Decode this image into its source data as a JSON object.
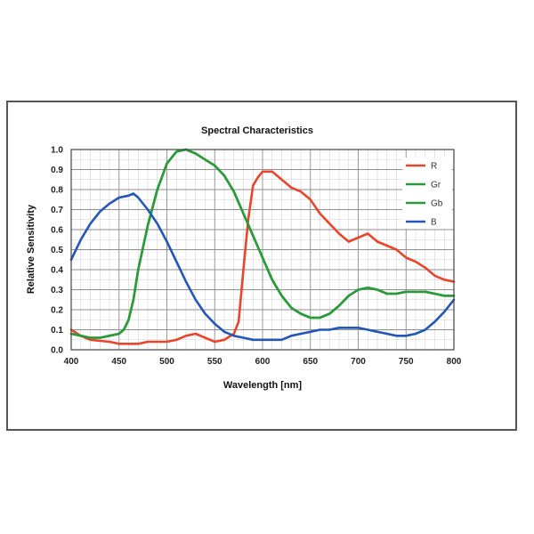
{
  "chart_data": {
    "type": "line",
    "title": "Spectral Characteristics",
    "xlabel": "Wavelength [nm]",
    "ylabel": "Relative Sensitivity",
    "xlim": [
      400,
      800
    ],
    "ylim": [
      0,
      1.0
    ],
    "xticks": [
      400,
      450,
      500,
      550,
      600,
      650,
      700,
      750,
      800
    ],
    "yticks": [
      0.0,
      0.1,
      0.2,
      0.3,
      0.4,
      0.5,
      0.6,
      0.7,
      0.8,
      0.9,
      1.0
    ],
    "grid": true,
    "legend_position": "top-right",
    "series": [
      {
        "name": "R",
        "color": "#e8452c",
        "points": [
          [
            400,
            0.1
          ],
          [
            410,
            0.07
          ],
          [
            420,
            0.05
          ],
          [
            440,
            0.04
          ],
          [
            450,
            0.03
          ],
          [
            470,
            0.03
          ],
          [
            480,
            0.04
          ],
          [
            500,
            0.04
          ],
          [
            510,
            0.05
          ],
          [
            520,
            0.07
          ],
          [
            530,
            0.08
          ],
          [
            540,
            0.06
          ],
          [
            550,
            0.04
          ],
          [
            560,
            0.05
          ],
          [
            570,
            0.08
          ],
          [
            575,
            0.14
          ],
          [
            580,
            0.4
          ],
          [
            585,
            0.65
          ],
          [
            590,
            0.82
          ],
          [
            595,
            0.86
          ],
          [
            600,
            0.89
          ],
          [
            610,
            0.89
          ],
          [
            620,
            0.85
          ],
          [
            630,
            0.81
          ],
          [
            640,
            0.79
          ],
          [
            650,
            0.75
          ],
          [
            660,
            0.68
          ],
          [
            670,
            0.63
          ],
          [
            680,
            0.58
          ],
          [
            690,
            0.54
          ],
          [
            700,
            0.56
          ],
          [
            710,
            0.58
          ],
          [
            720,
            0.54
          ],
          [
            730,
            0.52
          ],
          [
            740,
            0.5
          ],
          [
            750,
            0.46
          ],
          [
            760,
            0.44
          ],
          [
            770,
            0.41
          ],
          [
            780,
            0.37
          ],
          [
            790,
            0.35
          ],
          [
            800,
            0.34
          ]
        ]
      },
      {
        "name": "Gr",
        "color": "#2b9a3a",
        "points": [
          [
            400,
            0.08
          ],
          [
            410,
            0.07
          ],
          [
            420,
            0.06
          ],
          [
            430,
            0.06
          ],
          [
            440,
            0.07
          ],
          [
            450,
            0.08
          ],
          [
            455,
            0.1
          ],
          [
            460,
            0.15
          ],
          [
            465,
            0.25
          ],
          [
            470,
            0.4
          ],
          [
            480,
            0.62
          ],
          [
            490,
            0.8
          ],
          [
            500,
            0.93
          ],
          [
            510,
            0.99
          ],
          [
            520,
            1.0
          ],
          [
            530,
            0.98
          ],
          [
            540,
            0.95
          ],
          [
            550,
            0.92
          ],
          [
            560,
            0.87
          ],
          [
            570,
            0.79
          ],
          [
            580,
            0.68
          ],
          [
            590,
            0.57
          ],
          [
            600,
            0.46
          ],
          [
            610,
            0.35
          ],
          [
            620,
            0.27
          ],
          [
            630,
            0.21
          ],
          [
            640,
            0.18
          ],
          [
            650,
            0.16
          ],
          [
            660,
            0.16
          ],
          [
            670,
            0.18
          ],
          [
            680,
            0.22
          ],
          [
            690,
            0.27
          ],
          [
            700,
            0.3
          ],
          [
            710,
            0.31
          ],
          [
            720,
            0.3
          ],
          [
            730,
            0.28
          ],
          [
            740,
            0.28
          ],
          [
            750,
            0.29
          ],
          [
            760,
            0.29
          ],
          [
            770,
            0.29
          ],
          [
            780,
            0.28
          ],
          [
            790,
            0.27
          ],
          [
            800,
            0.27
          ]
        ]
      },
      {
        "name": "Gb",
        "color": "#2b9a3a",
        "points": [
          [
            400,
            0.08
          ],
          [
            410,
            0.07
          ],
          [
            420,
            0.06
          ],
          [
            430,
            0.06
          ],
          [
            440,
            0.07
          ],
          [
            450,
            0.08
          ],
          [
            455,
            0.1
          ],
          [
            460,
            0.15
          ],
          [
            465,
            0.25
          ],
          [
            470,
            0.4
          ],
          [
            480,
            0.62
          ],
          [
            490,
            0.8
          ],
          [
            500,
            0.93
          ],
          [
            510,
            0.99
          ],
          [
            520,
            1.0
          ],
          [
            530,
            0.98
          ],
          [
            540,
            0.95
          ],
          [
            550,
            0.92
          ],
          [
            560,
            0.87
          ],
          [
            570,
            0.79
          ],
          [
            580,
            0.68
          ],
          [
            590,
            0.57
          ],
          [
            600,
            0.46
          ],
          [
            610,
            0.35
          ],
          [
            620,
            0.27
          ],
          [
            630,
            0.21
          ],
          [
            640,
            0.18
          ],
          [
            650,
            0.16
          ],
          [
            660,
            0.16
          ],
          [
            670,
            0.18
          ],
          [
            680,
            0.22
          ],
          [
            690,
            0.27
          ],
          [
            700,
            0.3
          ],
          [
            710,
            0.31
          ],
          [
            720,
            0.3
          ],
          [
            730,
            0.28
          ],
          [
            740,
            0.28
          ],
          [
            750,
            0.29
          ],
          [
            760,
            0.29
          ],
          [
            770,
            0.29
          ],
          [
            780,
            0.28
          ],
          [
            790,
            0.27
          ],
          [
            800,
            0.27
          ]
        ]
      },
      {
        "name": "B",
        "color": "#2456b8",
        "points": [
          [
            400,
            0.45
          ],
          [
            410,
            0.55
          ],
          [
            420,
            0.63
          ],
          [
            430,
            0.69
          ],
          [
            440,
            0.73
          ],
          [
            450,
            0.76
          ],
          [
            460,
            0.77
          ],
          [
            465,
            0.78
          ],
          [
            470,
            0.76
          ],
          [
            480,
            0.7
          ],
          [
            490,
            0.63
          ],
          [
            500,
            0.54
          ],
          [
            510,
            0.44
          ],
          [
            520,
            0.34
          ],
          [
            530,
            0.25
          ],
          [
            540,
            0.18
          ],
          [
            550,
            0.13
          ],
          [
            560,
            0.09
          ],
          [
            570,
            0.07
          ],
          [
            580,
            0.06
          ],
          [
            590,
            0.05
          ],
          [
            600,
            0.05
          ],
          [
            610,
            0.05
          ],
          [
            620,
            0.05
          ],
          [
            630,
            0.07
          ],
          [
            640,
            0.08
          ],
          [
            650,
            0.09
          ],
          [
            660,
            0.1
          ],
          [
            670,
            0.1
          ],
          [
            680,
            0.11
          ],
          [
            690,
            0.11
          ],
          [
            700,
            0.11
          ],
          [
            710,
            0.1
          ],
          [
            720,
            0.09
          ],
          [
            730,
            0.08
          ],
          [
            740,
            0.07
          ],
          [
            750,
            0.07
          ],
          [
            760,
            0.08
          ],
          [
            770,
            0.1
          ],
          [
            780,
            0.14
          ],
          [
            790,
            0.19
          ],
          [
            800,
            0.25
          ]
        ]
      }
    ]
  }
}
